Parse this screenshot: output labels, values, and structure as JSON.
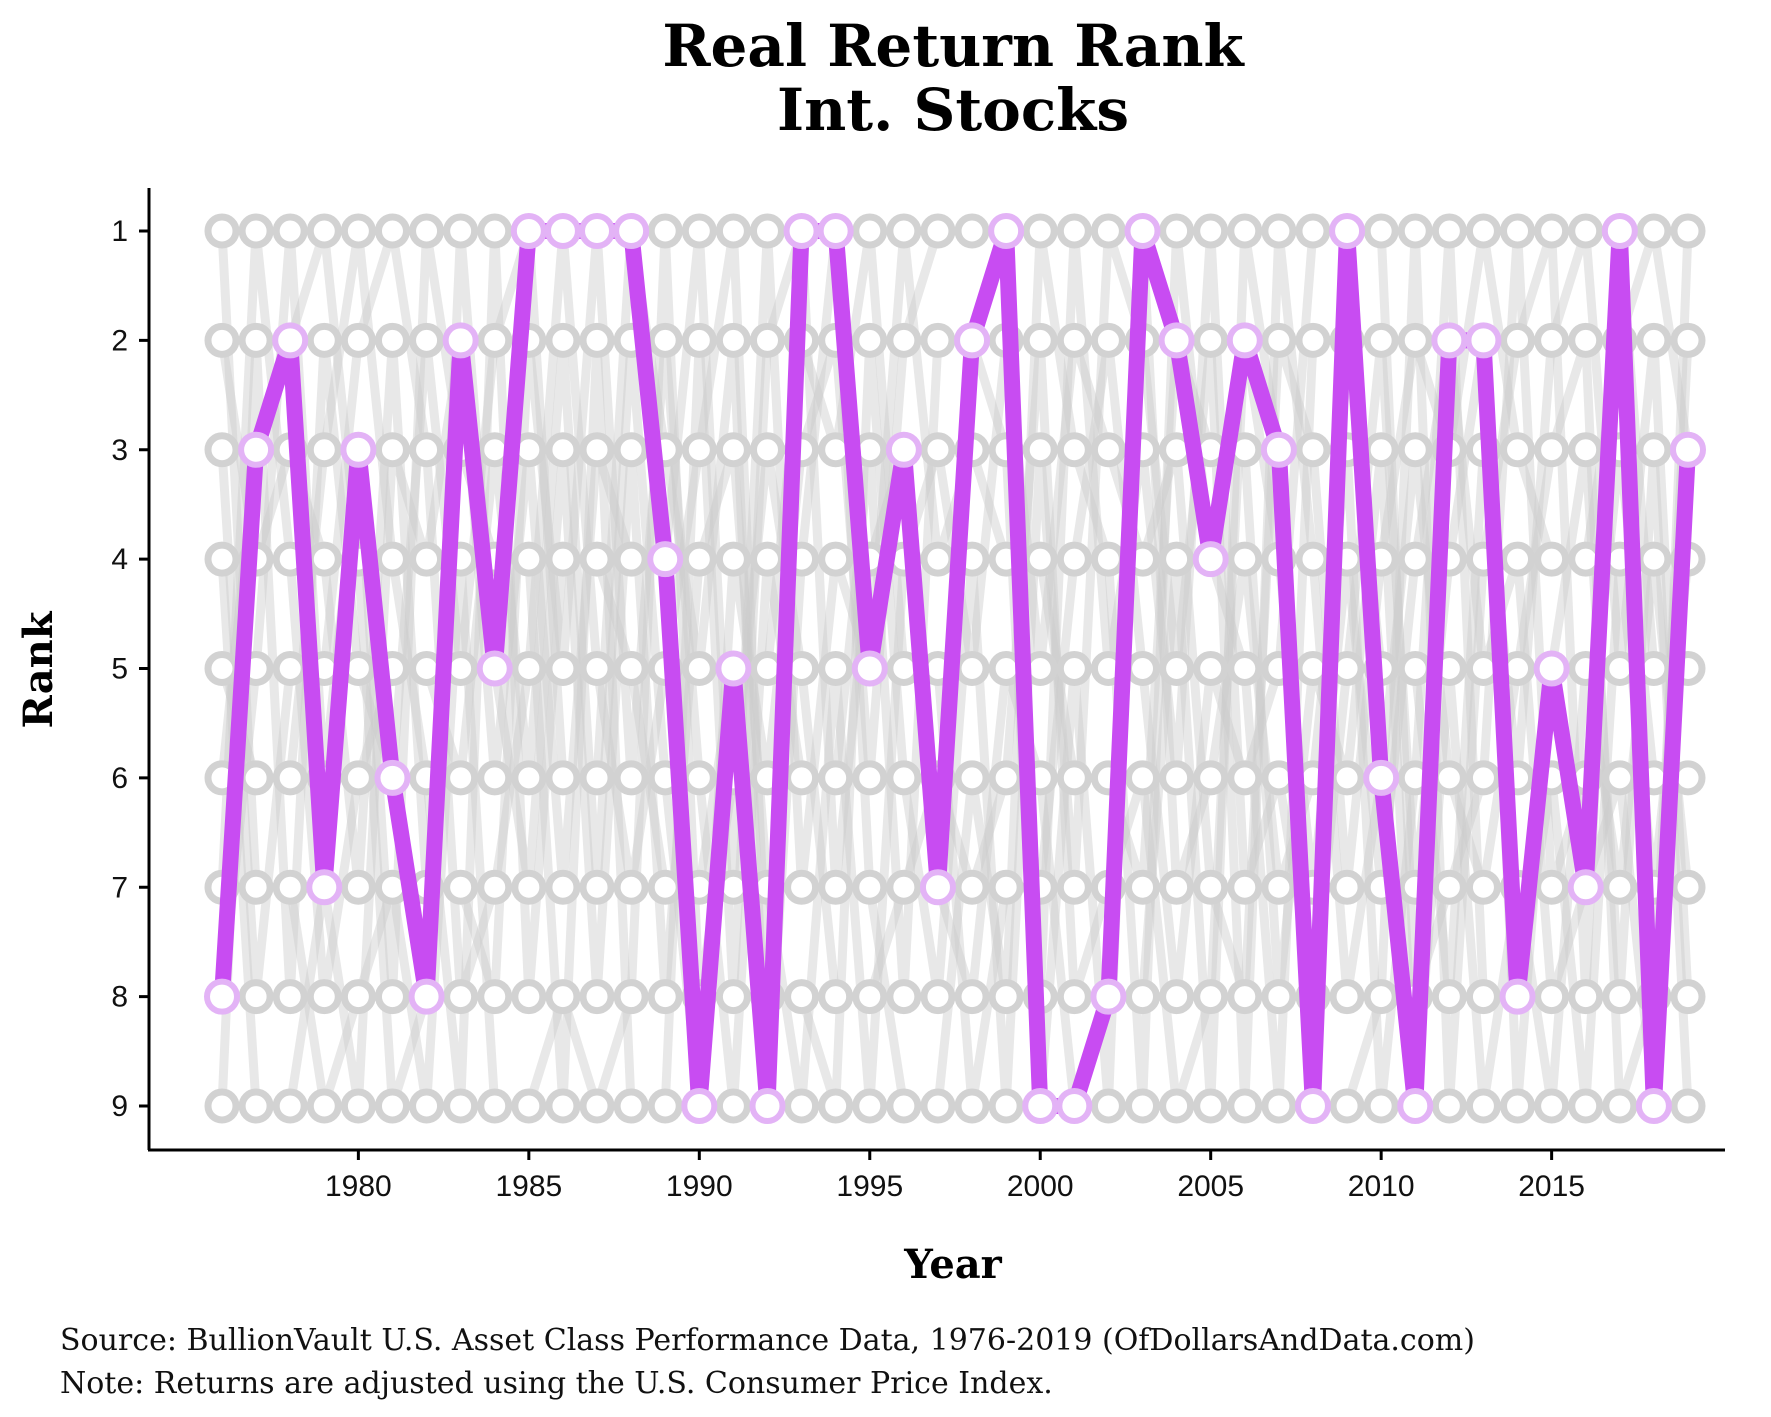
{
  "chart_data": {
    "type": "line",
    "title": [
      "Real Return Rank",
      "Int. Stocks"
    ],
    "xlabel": "Year",
    "ylabel": "Rank",
    "xlim": [
      1976,
      2019
    ],
    "ylim": [
      9,
      1
    ],
    "x_ticks": [
      1980,
      1985,
      1990,
      1995,
      2000,
      2005,
      2010,
      2015
    ],
    "y_ticks": [
      1,
      2,
      3,
      4,
      5,
      6,
      7,
      8,
      9
    ],
    "grid": false,
    "highlight_color": "#c84cf2",
    "background_color": "#cccccc",
    "series": [
      {
        "years": [
          1976,
          1977,
          1978,
          1979,
          1980,
          1981,
          1982,
          1983,
          1984,
          1985,
          1986,
          1987,
          1988,
          1989,
          1990,
          1991,
          1992,
          1993,
          1994,
          1995,
          1996,
          1997,
          1998,
          1999,
          2000,
          2001,
          2002,
          2003,
          2004,
          2005,
          2006,
          2007,
          2008,
          2009,
          2010,
          2011,
          2012,
          2013,
          2014,
          2015,
          2016,
          2017,
          2018,
          2019
        ],
        "values": [
          8,
          3,
          2,
          7,
          3,
          6,
          8,
          2,
          5,
          1,
          1,
          1,
          1,
          4,
          9,
          5,
          9,
          1,
          1,
          5,
          3,
          7,
          2,
          1,
          9,
          9,
          8,
          1,
          2,
          4,
          2,
          3,
          9,
          1,
          6,
          9,
          2,
          2,
          8,
          5,
          7,
          1,
          9,
          3
        ]
      }
    ]
  },
  "caption": {
    "source": "Source:  BullionVault U.S. Asset Class Performance Data, 1976-2019 (OfDollarsAndData.com)",
    "note": "Note:  Returns are adjusted using the U.S. Consumer Price Index."
  }
}
